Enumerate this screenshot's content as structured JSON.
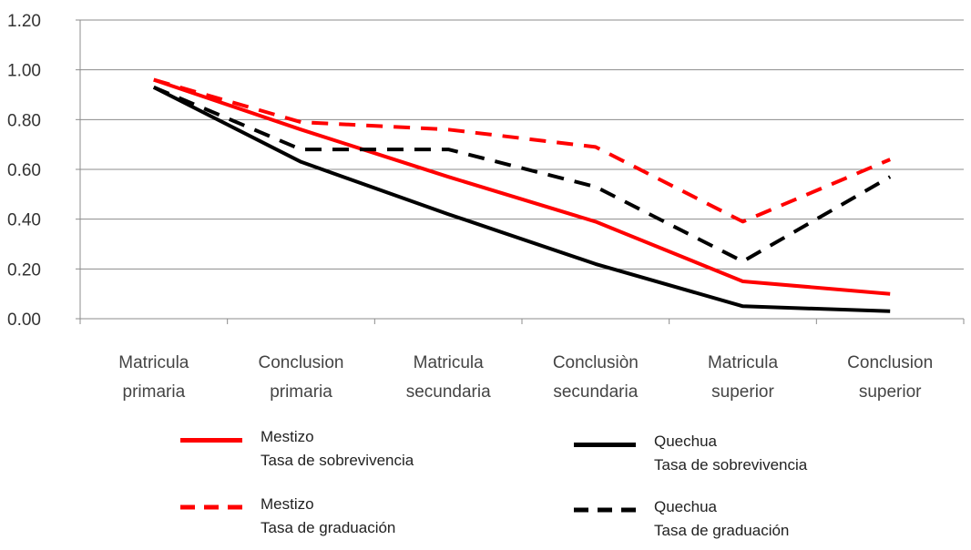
{
  "chart_data": {
    "type": "line",
    "categories": [
      [
        "Matricula",
        "primaria"
      ],
      [
        "Conclusion",
        "primaria"
      ],
      [
        "Matricula",
        "secundaria"
      ],
      [
        "Conclusiòn",
        "secundaria"
      ],
      [
        "Matricula",
        "superior"
      ],
      [
        "Conclusion",
        "superior"
      ]
    ],
    "yticks": [
      "0.00",
      "0.20",
      "0.40",
      "0.60",
      "0.80",
      "1.00",
      "1.20"
    ],
    "ylim": [
      0,
      1.2
    ],
    "grid": true,
    "legend_position": "bottom",
    "series": [
      {
        "name": "Mestizo",
        "subname": "Tasa de sobrevivencia",
        "color": "#ff0000",
        "dash": "solid",
        "values": [
          0.96,
          0.76,
          0.57,
          0.39,
          0.15,
          0.1
        ]
      },
      {
        "name": "Mestizo",
        "subname": "Tasa de graduación",
        "color": "#ff0000",
        "dash": "dashed",
        "values": [
          0.96,
          0.79,
          0.76,
          0.69,
          0.39,
          0.64
        ]
      },
      {
        "name": "Quechua",
        "subname": "Tasa de sobrevivencia",
        "color": "#000000",
        "dash": "solid",
        "values": [
          0.93,
          0.63,
          0.42,
          0.22,
          0.05,
          0.03
        ]
      },
      {
        "name": "Quechua",
        "subname": "Tasa de graduación",
        "color": "#000000",
        "dash": "dashed",
        "values": [
          0.93,
          0.68,
          0.68,
          0.53,
          0.23,
          0.57
        ]
      }
    ]
  }
}
